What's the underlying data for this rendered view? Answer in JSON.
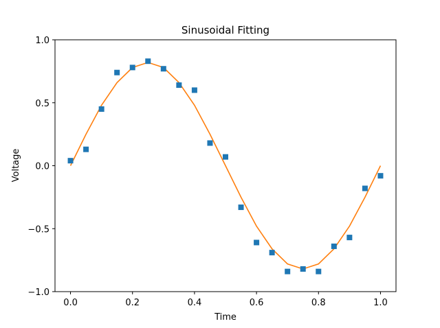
{
  "chart_data": {
    "type": "scatter",
    "title": "Sinusoidal Fitting",
    "xlabel": "Time",
    "ylabel": "Voltage",
    "xlim": [
      -0.05,
      1.05
    ],
    "ylim": [
      -1.0,
      1.0
    ],
    "xticks": [
      0.0,
      0.2,
      0.4,
      0.6,
      0.8,
      1.0
    ],
    "xtick_labels": [
      "0.0",
      "0.2",
      "0.4",
      "0.6",
      "0.8",
      "1.0"
    ],
    "yticks": [
      -1.0,
      -0.5,
      0.0,
      0.5,
      1.0
    ],
    "ytick_labels": [
      "−1.0",
      "−0.5",
      "0.0",
      "0.5",
      "1.0"
    ],
    "grid": false,
    "series": [
      {
        "kind": "scatter",
        "marker": "square",
        "color": "#1f77b4",
        "x": [
          0.0,
          0.05,
          0.1,
          0.15,
          0.2,
          0.25,
          0.3,
          0.35,
          0.4,
          0.45,
          0.5,
          0.55,
          0.6,
          0.65,
          0.7,
          0.75,
          0.8,
          0.85,
          0.9,
          0.95,
          1.0
        ],
        "y": [
          0.04,
          0.13,
          0.45,
          0.74,
          0.78,
          0.83,
          0.77,
          0.64,
          0.6,
          0.18,
          0.07,
          -0.33,
          -0.61,
          -0.69,
          -0.84,
          -0.82,
          -0.84,
          -0.64,
          -0.57,
          -0.18,
          -0.08
        ]
      },
      {
        "kind": "line",
        "color": "#ff7f0e",
        "x": [
          0.0,
          0.05,
          0.1,
          0.15,
          0.2,
          0.25,
          0.3,
          0.35,
          0.4,
          0.45,
          0.5,
          0.55,
          0.6,
          0.65,
          0.7,
          0.75,
          0.8,
          0.85,
          0.9,
          0.95,
          1.0
        ],
        "y": [
          0.0,
          0.25,
          0.48,
          0.66,
          0.78,
          0.82,
          0.78,
          0.66,
          0.48,
          0.25,
          0.0,
          -0.25,
          -0.48,
          -0.66,
          -0.78,
          -0.82,
          -0.78,
          -0.66,
          -0.48,
          -0.25,
          0.0
        ]
      }
    ]
  }
}
